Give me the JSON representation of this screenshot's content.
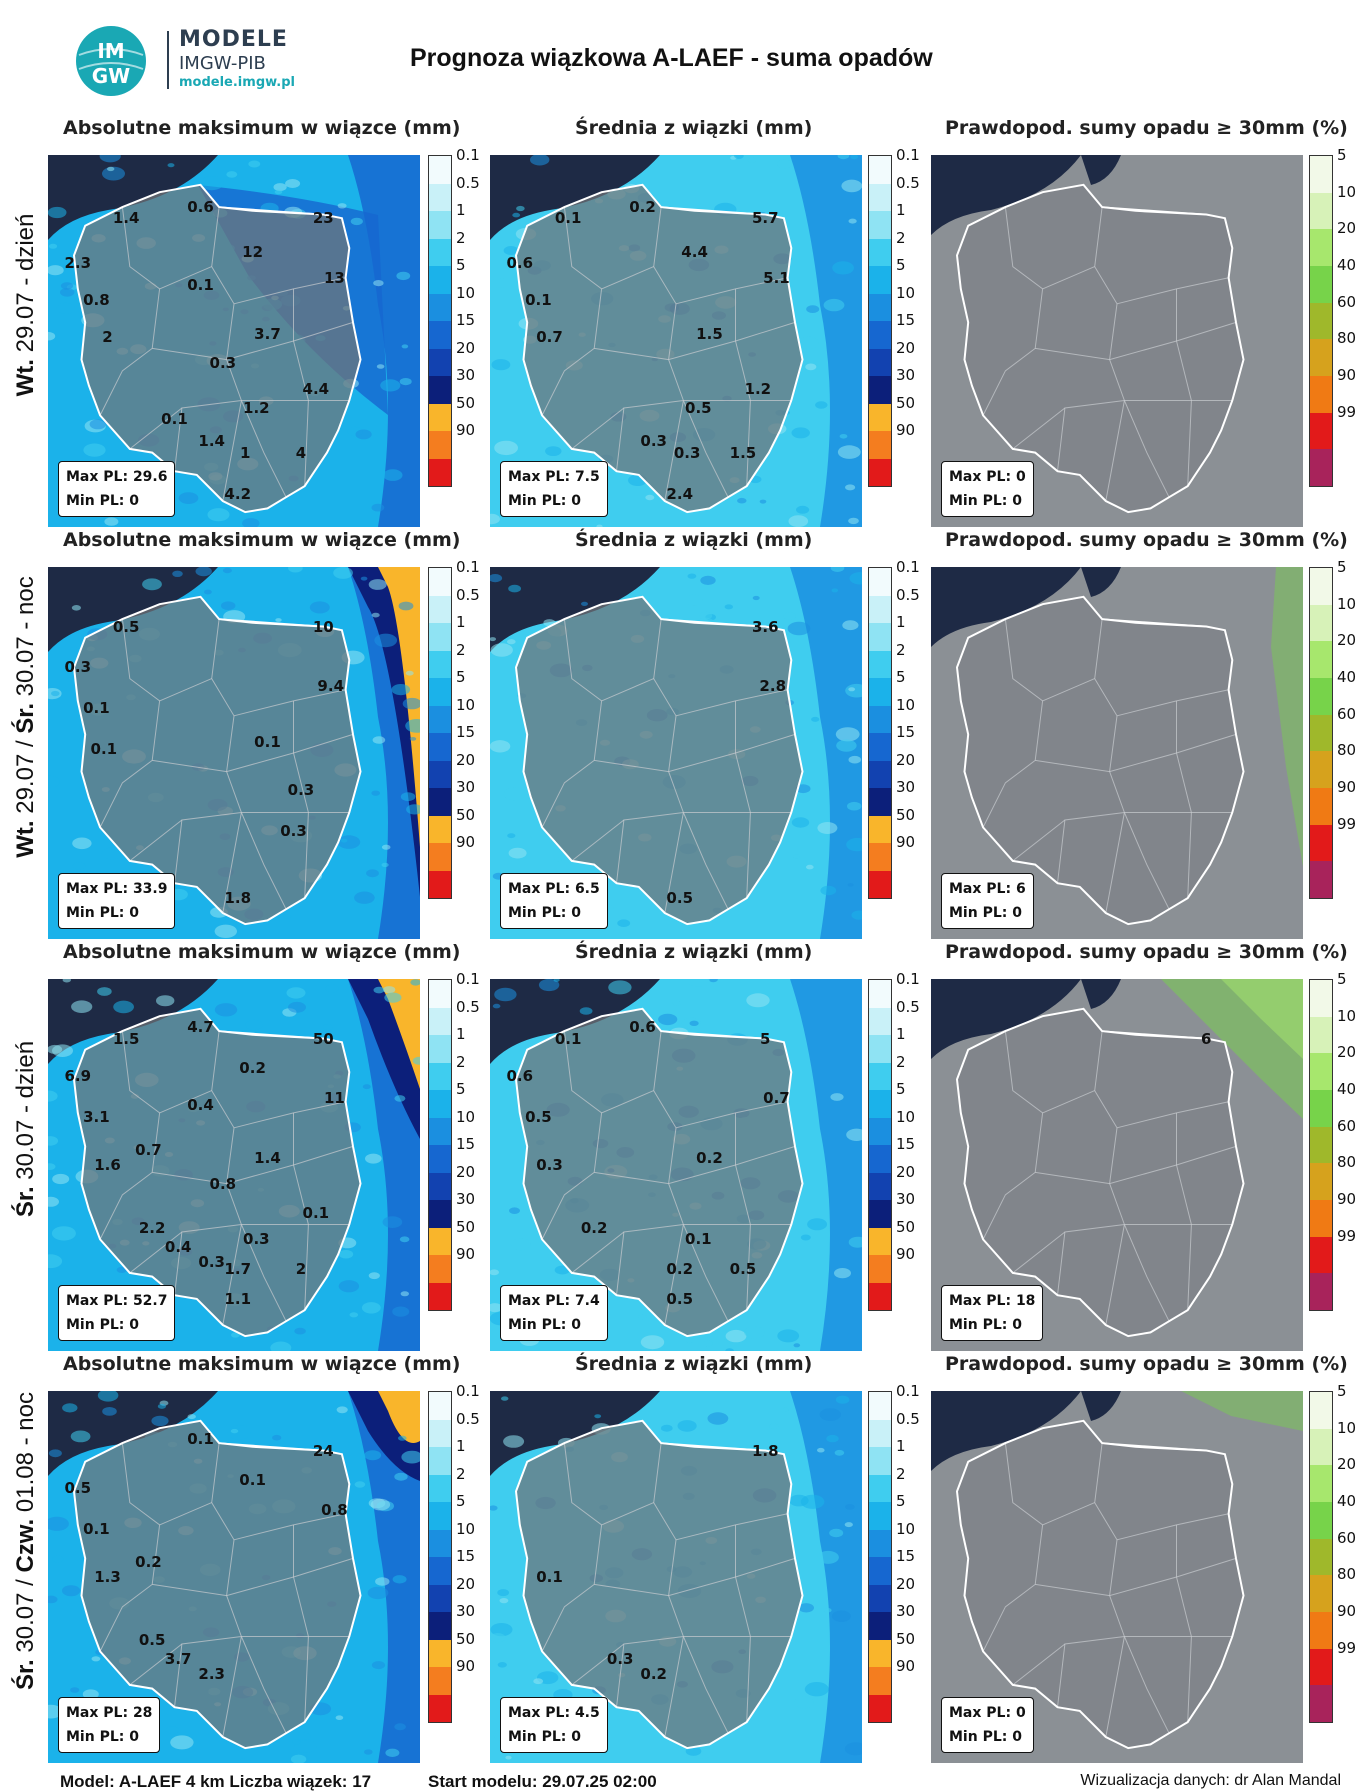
{
  "logo": {
    "name": "MODELE",
    "sub": "IMGW-PIB",
    "url": "modele.imgw.pl",
    "mark_top": "IM",
    "mark_bottom": "GW"
  },
  "title": "Prognoza wiązkowa A-LAEF - suma opadów",
  "panel_titles": [
    "Absolutne maksimum w wiązce (mm)",
    "Średnia z wiązki (mm)",
    "Prawdopod. sumy opadu ≥ 30mm (%)"
  ],
  "scales": {
    "mm": {
      "ticks": [
        "0.1",
        "0.5",
        "1",
        "2",
        "5",
        "10",
        "15",
        "20",
        "30",
        "50",
        "90"
      ],
      "colors": [
        "#f2fbfd",
        "#c9f1f8",
        "#8fe3f3",
        "#3fcdef",
        "#1bb2ea",
        "#1b8fe0",
        "#1667d0",
        "#1242b0",
        "#0c1f7a",
        "#f9b52b",
        "#f47d1f",
        "#e21a1a"
      ]
    },
    "prob": {
      "ticks": [
        "5",
        "10",
        "20",
        "40",
        "60",
        "80",
        "90",
        "99"
      ],
      "colors": [
        "#f2f9e8",
        "#d7f2b8",
        "#a7e76d",
        "#77d34a",
        "#9fb82b",
        "#d6a21d",
        "#f07a14",
        "#e21a1a",
        "#a8235b"
      ]
    }
  },
  "rows": [
    {
      "label_bold": "Wt.",
      "label_rest": " 29.07 - dzień",
      "panels": [
        {
          "max_pl": "Max PL: 29.6",
          "min_pl": "Min PL: 0",
          "labels": [
            [
              "1.4",
              0.21,
              0.17
            ],
            [
              "0.6",
              0.41,
              0.14
            ],
            [
              "23",
              0.74,
              0.17
            ],
            [
              "2.3",
              0.08,
              0.29
            ],
            [
              "12",
              0.55,
              0.26
            ],
            [
              "13",
              0.77,
              0.33
            ],
            [
              "0.1",
              0.41,
              0.35
            ],
            [
              "0.8",
              0.13,
              0.39
            ],
            [
              "2",
              0.16,
              0.49
            ],
            [
              "3.7",
              0.59,
              0.48
            ],
            [
              "0.3",
              0.47,
              0.56
            ],
            [
              "4.4",
              0.72,
              0.63
            ],
            [
              "1.2",
              0.56,
              0.68
            ],
            [
              "0.1",
              0.34,
              0.71
            ],
            [
              "1.4",
              0.44,
              0.77
            ],
            [
              "1",
              0.53,
              0.8
            ],
            [
              "4",
              0.68,
              0.8
            ],
            [
              "4.2",
              0.51,
              0.91
            ]
          ]
        },
        {
          "max_pl": "Max PL: 7.5",
          "min_pl": "Min PL: 0",
          "labels": [
            [
              "0.1",
              0.21,
              0.17
            ],
            [
              "0.2",
              0.41,
              0.14
            ],
            [
              "5.7",
              0.74,
              0.17
            ],
            [
              "0.6",
              0.08,
              0.29
            ],
            [
              "4.4",
              0.55,
              0.26
            ],
            [
              "5.1",
              0.77,
              0.33
            ],
            [
              "0.1",
              0.13,
              0.39
            ],
            [
              "0.7",
              0.16,
              0.49
            ],
            [
              "1.5",
              0.59,
              0.48
            ],
            [
              "1.2",
              0.72,
              0.63
            ],
            [
              "0.5",
              0.56,
              0.68
            ],
            [
              "0.3",
              0.44,
              0.77
            ],
            [
              "0.3",
              0.53,
              0.8
            ],
            [
              "1.5",
              0.68,
              0.8
            ],
            [
              "2.4",
              0.51,
              0.91
            ]
          ]
        },
        {
          "max_pl": "Max PL: 0",
          "min_pl": "Min PL: 0",
          "labels": []
        }
      ]
    },
    {
      "label_bold": "Wt.",
      "label_rest": " 29.07 / ",
      "label_bold2": "Śr.",
      "label_rest2": " 30.07 - noc",
      "panels": [
        {
          "max_pl": "Max PL: 33.9",
          "min_pl": "Min PL: 0",
          "labels": [
            [
              "0.5",
              0.21,
              0.16
            ],
            [
              "10",
              0.74,
              0.16
            ],
            [
              "0.3",
              0.08,
              0.27
            ],
            [
              "9.4",
              0.76,
              0.32
            ],
            [
              "0.1",
              0.13,
              0.38
            ],
            [
              "0.1",
              0.15,
              0.49
            ],
            [
              "0.1",
              0.59,
              0.47
            ],
            [
              "0.3",
              0.68,
              0.6
            ],
            [
              "0.3",
              0.66,
              0.71
            ],
            [
              "1.8",
              0.51,
              0.89
            ]
          ]
        },
        {
          "max_pl": "Max PL: 6.5",
          "min_pl": "Min PL: 0",
          "labels": [
            [
              "3.6",
              0.74,
              0.16
            ],
            [
              "2.8",
              0.76,
              0.32
            ],
            [
              "0.5",
              0.51,
              0.89
            ]
          ]
        },
        {
          "max_pl": "Max PL: 6",
          "min_pl": "Min PL: 0",
          "labels": []
        }
      ]
    },
    {
      "label_bold": "Śr.",
      "label_rest": " 30.07 - dzień",
      "panels": [
        {
          "max_pl": "Max PL: 52.7",
          "min_pl": "Min PL: 0",
          "labels": [
            [
              "1.5",
              0.21,
              0.16
            ],
            [
              "4.7",
              0.41,
              0.13
            ],
            [
              "50",
              0.74,
              0.16
            ],
            [
              "6.9",
              0.08,
              0.26
            ],
            [
              "0.2",
              0.55,
              0.24
            ],
            [
              "11",
              0.77,
              0.32
            ],
            [
              "0.4",
              0.41,
              0.34
            ],
            [
              "3.1",
              0.13,
              0.37
            ],
            [
              "0.7",
              0.27,
              0.46
            ],
            [
              "1.4",
              0.59,
              0.48
            ],
            [
              "1.6",
              0.16,
              0.5
            ],
            [
              "0.8",
              0.47,
              0.55
            ],
            [
              "0.1",
              0.72,
              0.63
            ],
            [
              "2.2",
              0.28,
              0.67
            ],
            [
              "0.3",
              0.56,
              0.7
            ],
            [
              "0.4",
              0.35,
              0.72
            ],
            [
              "0.3",
              0.44,
              0.76
            ],
            [
              "1.7",
              0.51,
              0.78
            ],
            [
              "2",
              0.68,
              0.78
            ],
            [
              "1.1",
              0.51,
              0.86
            ]
          ]
        },
        {
          "max_pl": "Max PL: 7.4",
          "min_pl": "Min PL: 0",
          "labels": [
            [
              "0.1",
              0.21,
              0.16
            ],
            [
              "0.6",
              0.41,
              0.13
            ],
            [
              "5",
              0.74,
              0.16
            ],
            [
              "0.6",
              0.08,
              0.26
            ],
            [
              "0.7",
              0.77,
              0.32
            ],
            [
              "0.5",
              0.13,
              0.37
            ],
            [
              "0.3",
              0.16,
              0.5
            ],
            [
              "0.2",
              0.59,
              0.48
            ],
            [
              "0.2",
              0.28,
              0.67
            ],
            [
              "0.1",
              0.56,
              0.7
            ],
            [
              "0.2",
              0.51,
              0.78
            ],
            [
              "0.5",
              0.68,
              0.78
            ],
            [
              "0.5",
              0.51,
              0.86
            ]
          ]
        },
        {
          "max_pl": "Max PL: 18",
          "min_pl": "Min PL: 0",
          "labels": [
            [
              "6",
              0.74,
              0.16
            ]
          ]
        }
      ]
    },
    {
      "label_bold": "Śr.",
      "label_rest": " 30.07 / ",
      "label_bold2": "Czw.",
      "label_rest2": " 01.08 - noc",
      "panels": [
        {
          "max_pl": "Max PL: 28",
          "min_pl": "Min PL: 0",
          "labels": [
            [
              "0.1",
              0.41,
              0.13
            ],
            [
              "24",
              0.74,
              0.16
            ],
            [
              "0.5",
              0.08,
              0.26
            ],
            [
              "0.1",
              0.55,
              0.24
            ],
            [
              "0.8",
              0.77,
              0.32
            ],
            [
              "0.1",
              0.13,
              0.37
            ],
            [
              "0.2",
              0.27,
              0.46
            ],
            [
              "1.3",
              0.16,
              0.5
            ],
            [
              "0.5",
              0.28,
              0.67
            ],
            [
              "3.7",
              0.35,
              0.72
            ],
            [
              "2.3",
              0.44,
              0.76
            ]
          ]
        },
        {
          "max_pl": "Max PL: 4.5",
          "min_pl": "Min PL: 0",
          "labels": [
            [
              "1.8",
              0.74,
              0.16
            ],
            [
              "0.1",
              0.16,
              0.5
            ],
            [
              "0.3",
              0.35,
              0.72
            ],
            [
              "0.2",
              0.44,
              0.76
            ]
          ]
        },
        {
          "max_pl": "Max PL: 0",
          "min_pl": "Min PL: 0",
          "labels": []
        }
      ]
    }
  ],
  "footer": {
    "left": "Model: A-LAEF 4 km Liczba wiązek: 17",
    "start": "Start modelu: 29.07.25 02:00",
    "credit": "Wizualizacja danych: dr Alan Mandal"
  }
}
